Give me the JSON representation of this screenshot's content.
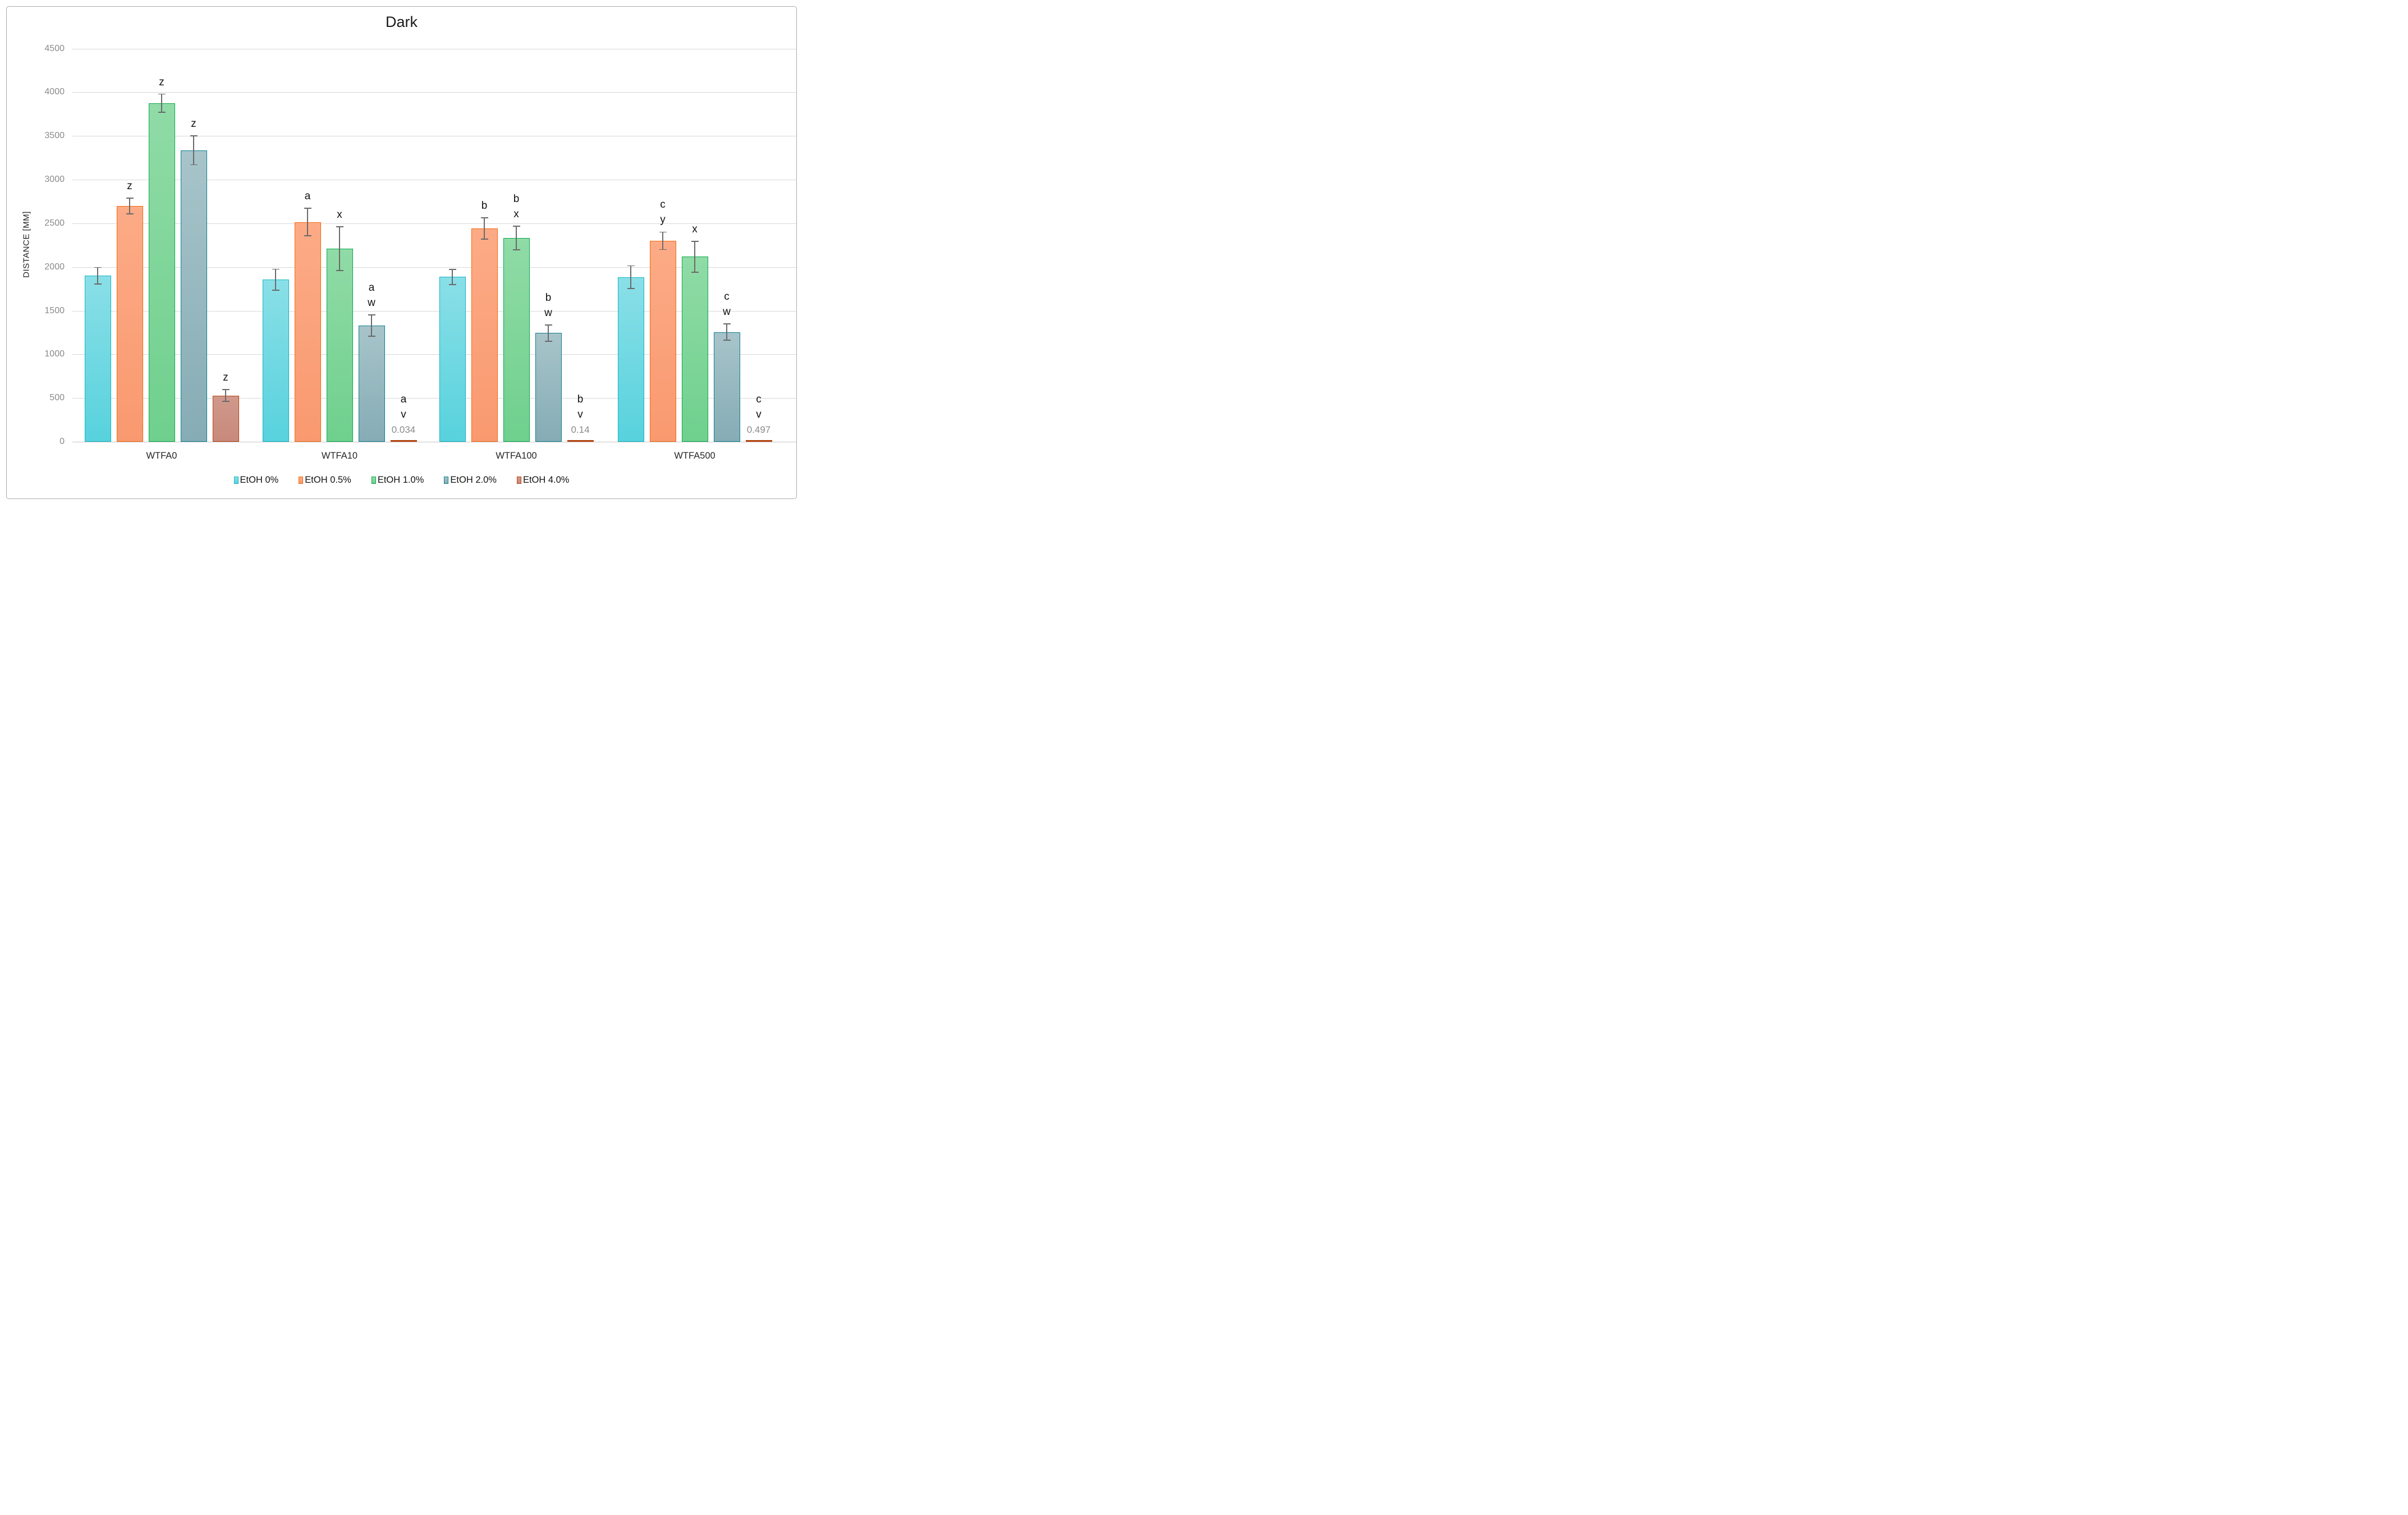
{
  "chart_data": {
    "type": "bar",
    "title": "Dark",
    "ylabel": "DISTANCE [MM]",
    "xlabel": "",
    "ylim": [
      0,
      4500
    ],
    "ytick_step": 500,
    "ytick_labels": [
      "0",
      "500",
      "1000",
      "1500",
      "2000",
      "2500",
      "3000",
      "3500",
      "4000",
      "4500"
    ],
    "grid": "horizontal",
    "legend_position": "bottom",
    "categories": [
      "WTFA0",
      "WTFA10",
      "WTFA100",
      "WTFA500"
    ],
    "series": [
      {
        "name": "EtOH 0%",
        "border_color": "#14b4c4",
        "fill_top": "#8adfe7",
        "fill_bottom": "#57d2dd",
        "values": [
          1900,
          1855,
          1886,
          1885
        ],
        "errors": [
          95,
          120,
          88,
          130
        ],
        "annotations": [
          [],
          [],
          [],
          []
        ],
        "value_labels": [
          "",
          "",
          "",
          ""
        ]
      },
      {
        "name": "EtOH 0.5%",
        "border_color": "#f4690e",
        "fill_top": "#fcab86",
        "fill_bottom": "#f99970",
        "values": [
          2700,
          2515,
          2441,
          2300
        ],
        "errors": [
          90,
          158,
          122,
          100
        ],
        "annotations": [
          [
            "z"
          ],
          [
            "a"
          ],
          [
            "b"
          ],
          [
            "c",
            "y"
          ]
        ],
        "value_labels": [
          "",
          "",
          "",
          ""
        ]
      },
      {
        "name": "EtOH 1.0%",
        "border_color": "#0aa84f",
        "fill_top": "#90dba6",
        "fill_bottom": "#6fd08d",
        "values": [
          3875,
          2210,
          2331,
          2118
        ],
        "errors": [
          105,
          250,
          135,
          177
        ],
        "annotations": [
          [
            "z"
          ],
          [
            "x"
          ],
          [
            "b",
            "x"
          ],
          [
            "x"
          ]
        ],
        "value_labels": [
          "",
          "",
          "",
          ""
        ]
      },
      {
        "name": "EtOH 2.0%",
        "border_color": "#0d7f90",
        "fill_top": "#a7c4ca",
        "fill_bottom": "#86acb5",
        "values": [
          3335,
          1330,
          1244,
          1256
        ],
        "errors": [
          165,
          122,
          94,
          92
        ],
        "annotations": [
          [
            "z"
          ],
          [
            "a",
            "w"
          ],
          [
            "b",
            "w"
          ],
          [
            "c",
            "w"
          ]
        ],
        "value_labels": [
          "",
          "",
          "",
          ""
        ]
      },
      {
        "name": "EtOH 4.0%",
        "border_color": "#b5430e",
        "fill_top": "#d0998b",
        "fill_bottom": "#c8897c",
        "values": [
          530,
          0.034,
          0.14,
          0.497
        ],
        "errors": [
          67,
          null,
          null,
          null
        ],
        "annotations": [
          [
            "z"
          ],
          [
            "a",
            "v"
          ],
          [
            "b",
            "v"
          ],
          [
            "c",
            "v"
          ]
        ],
        "value_labels": [
          "",
          "0.034",
          "0.14",
          "0.497"
        ]
      }
    ]
  },
  "header": {
    "title": "Dark"
  },
  "axes": {
    "y_title": "DISTANCE [MM]"
  },
  "legend": {
    "items": [
      "EtOH 0%",
      "EtOH 0.5%",
      "EtOH 1.0%",
      "EtOH 2.0%",
      "EtOH 4.0%"
    ]
  }
}
